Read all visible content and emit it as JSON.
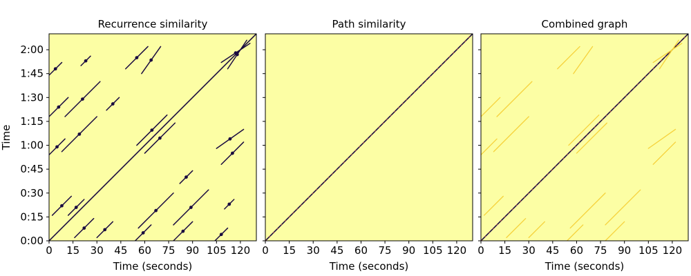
{
  "chart_data": [
    {
      "type": "heatmap",
      "title": "Recurrence similarity",
      "xlabel": "Time (seconds)",
      "ylabel": "Time",
      "xlim": [
        0,
        130
      ],
      "ylim": [
        0,
        130
      ],
      "xticks": [
        0,
        15,
        30,
        45,
        60,
        75,
        90,
        105,
        120
      ],
      "xticklabels": [
        "0",
        "15",
        "30",
        "45",
        "60",
        "75",
        "90",
        "105",
        "120"
      ],
      "yticks": [
        0,
        15,
        30,
        45,
        60,
        75,
        90,
        105,
        120
      ],
      "yticklabels": [
        "0:00",
        "0:15",
        "0:30",
        "0:45",
        "1:00",
        "1:15",
        "1:30",
        "1:45",
        "2:00"
      ],
      "background_color": "#fcfea4",
      "mark_color": "#1a0b40",
      "segments": [
        {
          "x0": 0,
          "y0": 0,
          "x1": 130,
          "y1": 130,
          "kind": "main-diagonal"
        },
        {
          "x0": 0,
          "y0": 54,
          "x1": 10,
          "y1": 64
        },
        {
          "x0": 8,
          "y0": 56,
          "x1": 30,
          "y1": 78
        },
        {
          "x0": 0,
          "y0": 78,
          "x1": 12,
          "y1": 90
        },
        {
          "x0": 10,
          "y0": 78,
          "x1": 32,
          "y1": 100
        },
        {
          "x0": 54,
          "y0": 0,
          "x1": 64,
          "y1": 10
        },
        {
          "x0": 56,
          "y0": 8,
          "x1": 78,
          "y1": 30
        },
        {
          "x0": 78,
          "y0": 0,
          "x1": 90,
          "y1": 12
        },
        {
          "x0": 78,
          "y0": 10,
          "x1": 100,
          "y1": 32
        },
        {
          "x0": 2,
          "y0": 16,
          "x1": 14,
          "y1": 28
        },
        {
          "x0": 16,
          "y0": 2,
          "x1": 28,
          "y1": 14
        },
        {
          "x0": 12,
          "y0": 16,
          "x1": 22,
          "y1": 26
        },
        {
          "x0": 30,
          "y0": 2,
          "x1": 40,
          "y1": 12
        },
        {
          "x0": 104,
          "y0": 0,
          "x1": 112,
          "y1": 8
        },
        {
          "x0": 0,
          "y0": 104,
          "x1": 8,
          "y1": 112
        },
        {
          "x0": 55,
          "y0": 60,
          "x1": 74,
          "y1": 79
        },
        {
          "x0": 60,
          "y0": 55,
          "x1": 79,
          "y1": 74
        },
        {
          "x0": 105,
          "y0": 58,
          "x1": 122,
          "y1": 70
        },
        {
          "x0": 58,
          "y0": 105,
          "x1": 70,
          "y1": 122
        },
        {
          "x0": 108,
          "y0": 112,
          "x1": 126,
          "y1": 124
        },
        {
          "x0": 112,
          "y0": 108,
          "x1": 124,
          "y1": 126
        },
        {
          "x0": 48,
          "y0": 108,
          "x1": 62,
          "y1": 122
        },
        {
          "x0": 108,
          "y0": 48,
          "x1": 122,
          "y1": 62
        },
        {
          "x0": 36,
          "y0": 82,
          "x1": 44,
          "y1": 90
        },
        {
          "x0": 82,
          "y0": 36,
          "x1": 90,
          "y1": 44
        },
        {
          "x0": 20,
          "y0": 110,
          "x1": 26,
          "y1": 116
        },
        {
          "x0": 110,
          "y0": 20,
          "x1": 116,
          "y1": 26
        }
      ]
    },
    {
      "type": "heatmap",
      "title": "Path similarity",
      "xlabel": "Time (seconds)",
      "xlim": [
        0,
        130
      ],
      "ylim": [
        0,
        130
      ],
      "xticks": [
        0,
        15,
        30,
        45,
        60,
        75,
        90,
        105,
        120
      ],
      "xticklabels": [
        "0",
        "15",
        "30",
        "45",
        "60",
        "75",
        "90",
        "105",
        "120"
      ],
      "background_color": "#fcfea4",
      "mark_color": "#1a0b40",
      "accent_color": "#e4513f",
      "segments": [
        {
          "x0": 0,
          "y0": 0,
          "x1": 130,
          "y1": 130,
          "kind": "main-diagonal"
        }
      ]
    },
    {
      "type": "heatmap",
      "title": "Combined graph",
      "xlabel": "Time (seconds)",
      "xlim": [
        0,
        130
      ],
      "ylim": [
        0,
        130
      ],
      "xticks": [
        0,
        15,
        30,
        45,
        60,
        75,
        90,
        105,
        120
      ],
      "xticklabels": [
        "0",
        "15",
        "30",
        "45",
        "60",
        "75",
        "90",
        "105",
        "120"
      ],
      "background_color": "#fcfea4",
      "mark_color": "#1a0b40",
      "faint_color": "#f6d23c",
      "segments": [
        {
          "x0": 0,
          "y0": 0,
          "x1": 130,
          "y1": 130,
          "kind": "main-diagonal"
        },
        {
          "x0": 0,
          "y0": 54,
          "x1": 10,
          "y1": 64
        },
        {
          "x0": 8,
          "y0": 56,
          "x1": 30,
          "y1": 78
        },
        {
          "x0": 0,
          "y0": 78,
          "x1": 12,
          "y1": 90
        },
        {
          "x0": 10,
          "y0": 78,
          "x1": 32,
          "y1": 100
        },
        {
          "x0": 54,
          "y0": 0,
          "x1": 64,
          "y1": 10
        },
        {
          "x0": 56,
          "y0": 8,
          "x1": 78,
          "y1": 30
        },
        {
          "x0": 78,
          "y0": 0,
          "x1": 90,
          "y1": 12
        },
        {
          "x0": 78,
          "y0": 10,
          "x1": 100,
          "y1": 32
        },
        {
          "x0": 2,
          "y0": 16,
          "x1": 14,
          "y1": 28
        },
        {
          "x0": 16,
          "y0": 2,
          "x1": 28,
          "y1": 14
        },
        {
          "x0": 30,
          "y0": 2,
          "x1": 40,
          "y1": 12
        },
        {
          "x0": 55,
          "y0": 60,
          "x1": 74,
          "y1": 79
        },
        {
          "x0": 60,
          "y0": 55,
          "x1": 79,
          "y1": 74
        },
        {
          "x0": 105,
          "y0": 58,
          "x1": 122,
          "y1": 70
        },
        {
          "x0": 58,
          "y0": 105,
          "x1": 70,
          "y1": 122
        },
        {
          "x0": 108,
          "y0": 112,
          "x1": 126,
          "y1": 124
        },
        {
          "x0": 112,
          "y0": 108,
          "x1": 124,
          "y1": 126
        },
        {
          "x0": 48,
          "y0": 108,
          "x1": 62,
          "y1": 122
        },
        {
          "x0": 108,
          "y0": 48,
          "x1": 122,
          "y1": 62
        }
      ]
    }
  ]
}
